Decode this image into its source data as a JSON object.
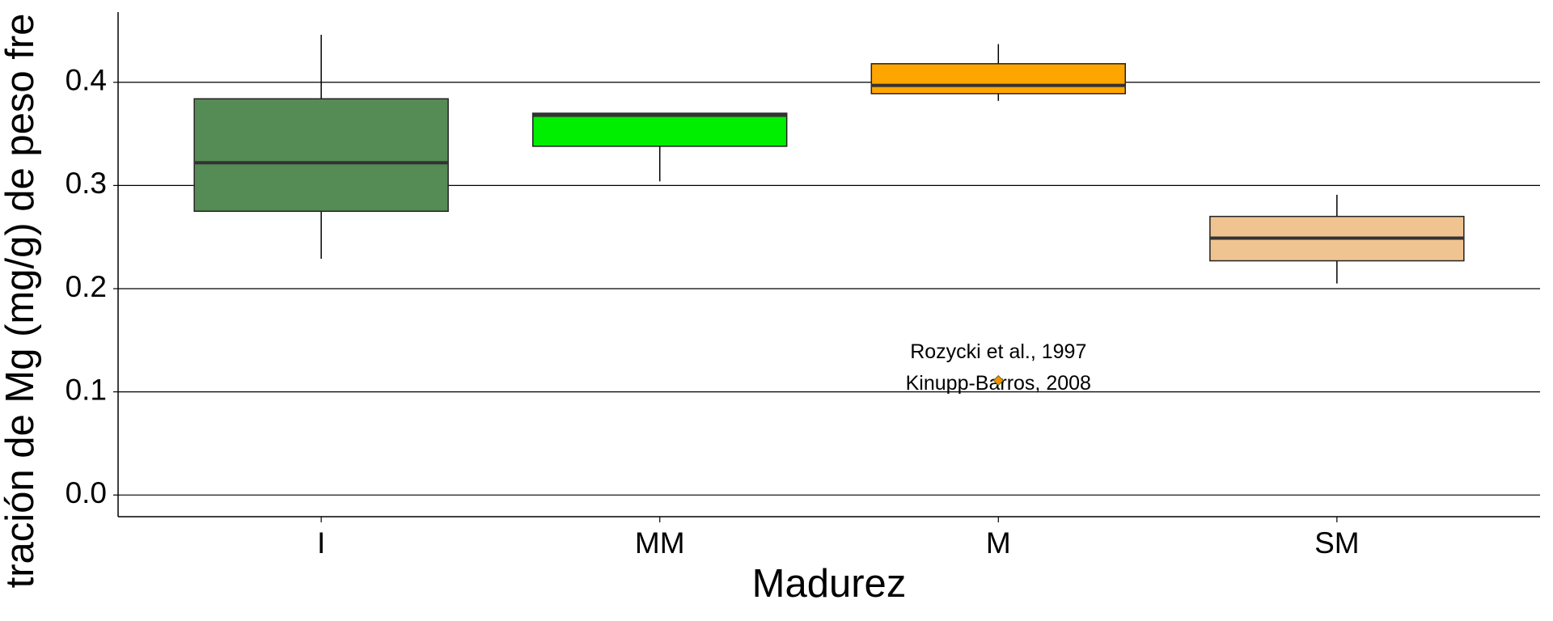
{
  "chart_data": {
    "type": "box",
    "x_label": "Madurez",
    "y_label": "tración de Mg (mg/g) de peso fre",
    "categories": [
      "I",
      "MM",
      "M",
      "SM"
    ],
    "colors": [
      "#558b55",
      "#00ee00",
      "#ffa500",
      "#f0c490"
    ],
    "boxes": [
      {
        "whisker_low": 0.229,
        "q1": 0.275,
        "median": 0.322,
        "q3": 0.384,
        "whisker_high": 0.446
      },
      {
        "whisker_low": 0.304,
        "q1": 0.338,
        "median": 0.368,
        "q3": 0.37,
        "whisker_high": 0.37
      },
      {
        "whisker_low": 0.382,
        "q1": 0.389,
        "median": 0.397,
        "q3": 0.418,
        "whisker_high": 0.437
      },
      {
        "whisker_low": 0.205,
        "q1": 0.227,
        "median": 0.249,
        "q3": 0.27,
        "whisker_high": 0.291
      }
    ],
    "reference_point": {
      "category": "M",
      "value": 0.111,
      "color": "#ff8c00"
    },
    "annotations": [
      "Rozycki et al., 1997",
      "Kinupp-Barros, 2008"
    ],
    "ylim": [
      -0.021,
      0.468
    ],
    "yticks": [
      {
        "value": 0,
        "label": "0.0"
      },
      0.1,
      0.2,
      0.3,
      0.4
    ],
    "grid": true
  }
}
